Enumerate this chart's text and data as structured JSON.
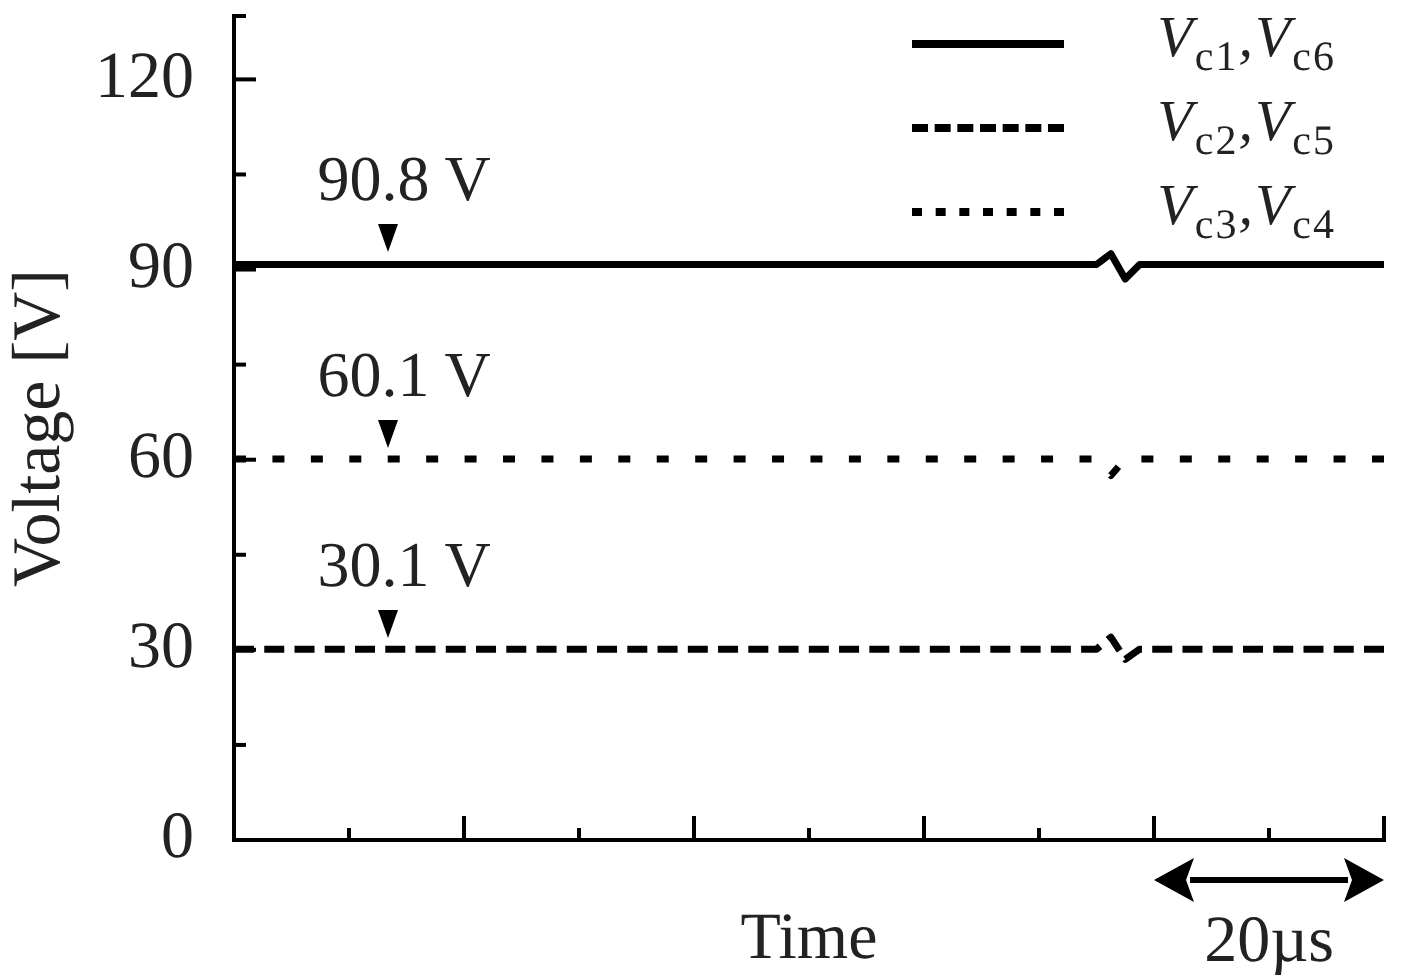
{
  "chart_data": {
    "type": "line",
    "xlabel": "Time",
    "ylabel": "Voltage [V]",
    "categories": [
      null,
      null,
      null,
      null,
      null,
      null,
      null,
      null,
      null,
      null,
      null,
      null,
      null,
      null,
      null,
      null,
      null,
      null,
      null,
      null,
      null,
      null,
      null,
      null,
      null,
      null,
      null,
      null,
      null,
      null,
      null,
      null,
      null,
      null,
      null,
      null,
      null,
      null,
      null,
      null,
      null,
      null,
      null,
      null,
      null,
      null,
      null,
      null,
      null,
      null,
      null,
      null,
      null,
      null,
      null,
      null,
      null,
      null,
      null,
      null,
      null,
      null,
      null,
      null,
      null,
      null,
      null,
      null,
      null,
      null,
      null,
      null,
      null,
      null,
      null,
      null,
      null,
      null,
      null,
      null,
      null
    ],
    "series": [
      {
        "name": "V$_{c1}$,V$_{c6}$",
        "color": "#000000",
        "line_style": "solid",
        "values": [
          90.8,
          90.8,
          90.8,
          90.8,
          90.8,
          90.8,
          90.8,
          90.8,
          90.8,
          90.8,
          90.8,
          90.8,
          90.8,
          90.8,
          90.8,
          90.8,
          90.8,
          90.8,
          90.8,
          90.8,
          90.8,
          90.8,
          90.8,
          90.8,
          90.8,
          90.8,
          90.8,
          90.8,
          90.8,
          90.8,
          90.8,
          90.8,
          90.8,
          90.8,
          90.8,
          90.8,
          90.8,
          90.8,
          90.8,
          90.8,
          90.8,
          90.8,
          90.8,
          90.8,
          90.8,
          90.8,
          90.8,
          90.8,
          90.8,
          90.8,
          90.8,
          90.8,
          90.8,
          90.8,
          90.8,
          90.8,
          90.8,
          90.8,
          90.8,
          90.8,
          90.8,
          92.5,
          88.5,
          90.8,
          90.8,
          90.8,
          90.8,
          90.8,
          90.8,
          90.8,
          90.8,
          90.8,
          90.8,
          90.8,
          90.8,
          90.8,
          90.8,
          90.8,
          90.8,
          90.8,
          90.8
        ]
      },
      {
        "name": "V$_{c2}$,V$_{c5}$",
        "color": "#000000",
        "line_style": "dashed",
        "values": [
          30.1,
          30.1,
          30.1,
          30.1,
          30.1,
          30.1,
          30.1,
          30.1,
          30.1,
          30.1,
          30.1,
          30.1,
          30.1,
          30.1,
          30.1,
          30.1,
          30.1,
          30.1,
          30.1,
          30.1,
          30.1,
          30.1,
          30.1,
          30.1,
          30.1,
          30.1,
          30.1,
          30.1,
          30.1,
          30.1,
          30.1,
          30.1,
          30.1,
          30.1,
          30.1,
          30.1,
          30.1,
          30.1,
          30.1,
          30.1,
          30.1,
          30.1,
          30.1,
          30.1,
          30.1,
          30.1,
          30.1,
          30.1,
          30.1,
          30.1,
          30.1,
          30.1,
          30.1,
          30.1,
          30.1,
          30.1,
          30.1,
          30.1,
          30.1,
          30.1,
          30.1,
          32,
          28.5,
          30.1,
          30.1,
          30.1,
          30.1,
          30.1,
          30.1,
          30.1,
          30.1,
          30.1,
          30.1,
          30.1,
          30.1,
          30.1,
          30.1,
          30.1,
          30.1,
          30.1,
          30.1
        ]
      },
      {
        "name": "V$_{c3}$,V$_{c4}$",
        "color": "#000000",
        "line_style": "dotted",
        "values": [
          60.1,
          60.1,
          60.1,
          60.1,
          60.1,
          60.1,
          60.1,
          60.1,
          60.1,
          60.1,
          60.1,
          60.1,
          60.1,
          60.1,
          60.1,
          60.1,
          60.1,
          60.1,
          60.1,
          60.1,
          60.1,
          60.1,
          60.1,
          60.1,
          60.1,
          60.1,
          60.1,
          60.1,
          60.1,
          60.1,
          60.1,
          60.1,
          60.1,
          60.1,
          60.1,
          60.1,
          60.1,
          60.1,
          60.1,
          60.1,
          60.1,
          60.1,
          60.1,
          60.1,
          60.1,
          60.1,
          60.1,
          60.1,
          60.1,
          60.1,
          60.1,
          60.1,
          60.1,
          60.1,
          60.1,
          60.1,
          60.1,
          60.1,
          60.1,
          60.1,
          60.1,
          57.5,
          60.1,
          60.1,
          60.1,
          60.1,
          60.1,
          60.1,
          60.1,
          60.1,
          60.1,
          60.1,
          60.1,
          60.1,
          60.1,
          60.1,
          60.1,
          60.1,
          60.1,
          60.1,
          60.1
        ]
      }
    ],
    "ylim": [
      0,
      130
    ],
    "yticks": [
      0,
      {
        "value": 15,
        "label": null
      },
      30,
      {
        "value": 45,
        "label": null
      },
      60,
      {
        "value": 75,
        "label": null
      },
      90,
      {
        "value": 105,
        "label": null
      },
      120,
      {
        "value": 130,
        "label": null
      }
    ],
    "annotations": [
      {
        "text": "90.8 V",
        "y": 90.8
      },
      {
        "text": "60.1 V",
        "y": 60.1
      },
      {
        "text": "30.1 V",
        "y": 30.1
      },
      "20µs"
    ],
    "legend": "top right",
    "grid": false,
    "marker": "none",
    "tick_labels": "y"
  }
}
